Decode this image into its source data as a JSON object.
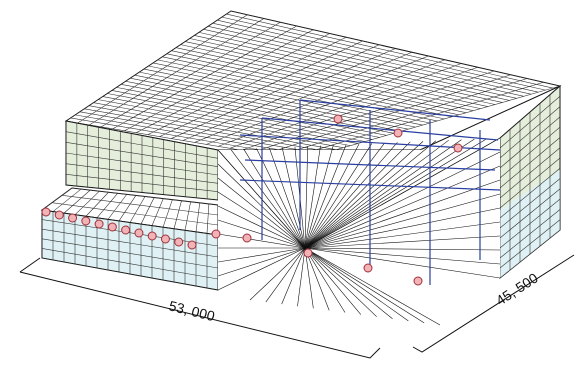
{
  "dimensions": {
    "width_label": "53, 000",
    "depth_label": "45, 500"
  },
  "colors": {
    "roof": "#ffffff",
    "upper_wall": "#e4eedb",
    "lower_wall": "#dff1f4",
    "grid_line": "#222222",
    "frame_blue": "#2a3fa0",
    "node_fill": "#f2b3b6",
    "node_stroke": "#a0303a",
    "ray": "#111111"
  },
  "icons": {
    "node": "pink-circle-marker",
    "dimension": "dimension-line"
  }
}
